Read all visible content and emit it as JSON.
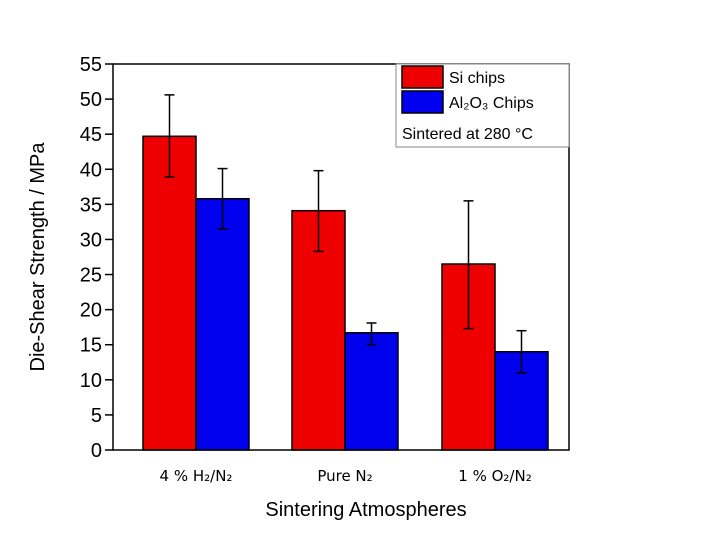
{
  "chart_data": {
    "type": "bar",
    "title": "",
    "xlabel": "Sintering Atmospheres",
    "ylabel": "Die-Shear Strength  / MPa",
    "ylim": [
      0,
      55
    ],
    "yticks": [
      0,
      5,
      10,
      15,
      20,
      25,
      30,
      35,
      40,
      45,
      50,
      55
    ],
    "ytick_labels": [
      "0",
      "5",
      "10",
      "15",
      "20",
      "25",
      "30",
      "35",
      "40",
      "45",
      "50",
      "55"
    ],
    "categories": [
      "4 % H₂/N₂",
      "Pure N₂",
      "1 % O₂/N₂"
    ],
    "series": [
      {
        "name": "Si chips",
        "color": "#ee0000",
        "values": [
          44.7,
          34.1,
          26.5
        ],
        "err_low": [
          38.9,
          28.3,
          17.3
        ],
        "err_high": [
          50.6,
          39.8,
          35.5
        ]
      },
      {
        "name": "Al₂O₃ Chips",
        "color": "#0000ee",
        "values": [
          35.8,
          16.7,
          14.0
        ],
        "err_low": [
          31.5,
          15.0,
          11.0
        ],
        "err_high": [
          40.1,
          18.1,
          17.0
        ]
      }
    ],
    "legend_position": "top-right",
    "annotation": "Sintered at 280 °C",
    "grid": false
  }
}
